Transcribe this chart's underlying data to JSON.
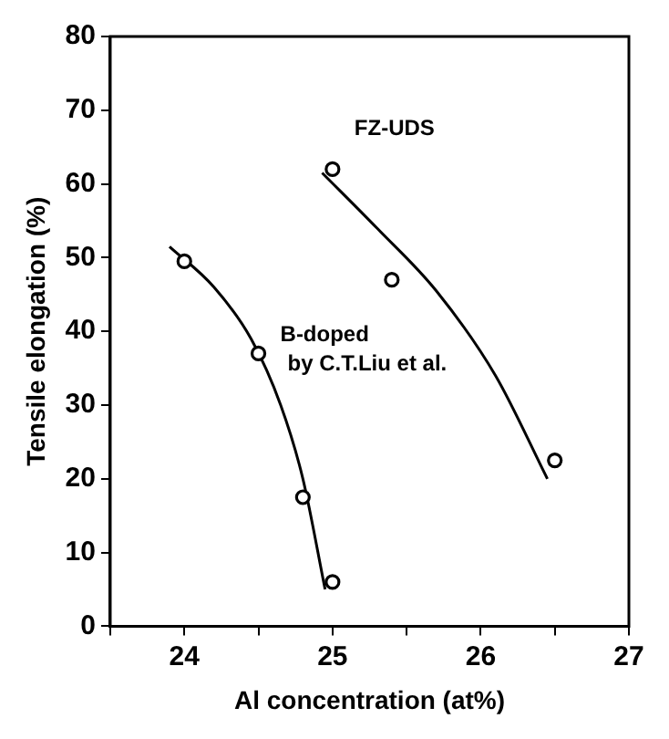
{
  "chart_data": {
    "type": "scatter",
    "xlabel": "Al concentration (at%)",
    "ylabel": "Tensile elongation (%)",
    "series": [
      {
        "type": "scatter",
        "name": "B-doped\nby C.T.Liu et al.",
        "color": "#000000",
        "x": [
          24,
          24.5,
          24.8,
          25
        ],
        "values": [
          49.5,
          37,
          17.5,
          6
        ]
      },
      {
        "type": "scatter",
        "name": "FZ-UDS",
        "color": "#000000",
        "x": [
          25,
          25.4,
          26.5
        ],
        "values": [
          62,
          47,
          22.5
        ]
      },
      {
        "type": "line",
        "marker": "none",
        "color": "#000000",
        "x": [
          23.9,
          24.2,
          24.45,
          24.65,
          24.8,
          24.95
        ],
        "values": [
          51.5,
          46,
          39,
          30,
          20,
          5
        ]
      },
      {
        "type": "line",
        "marker": "none",
        "color": "#000000",
        "x": [
          24.93,
          25.3,
          25.7,
          26.1,
          26.45
        ],
        "values": [
          61.5,
          54,
          45.5,
          34,
          20
        ]
      }
    ],
    "marker": "circle",
    "grid": false,
    "legend": false,
    "xlim": [
      23.5,
      27
    ],
    "xticks": [
      {
        "value": 23.5,
        "label": null
      },
      24,
      {
        "value": 24.5,
        "label": null
      },
      25,
      {
        "value": 25.5,
        "label": null
      },
      26,
      {
        "value": 26.5,
        "label": null
      },
      27
    ],
    "ylim": [
      0,
      80
    ],
    "yticks": [
      0,
      10,
      20,
      30,
      40,
      50,
      60,
      70,
      80
    ]
  }
}
